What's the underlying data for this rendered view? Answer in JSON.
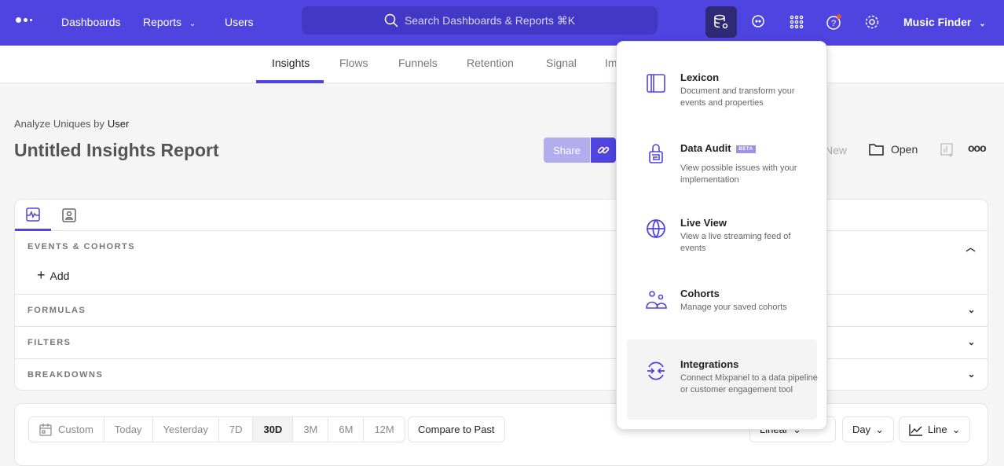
{
  "nav": {
    "links": [
      "Dashboards",
      "Reports",
      "Users"
    ],
    "search_placeholder": "Search Dashboards & Reports ⌘K",
    "project": "Music Finder",
    "accent": "#4f44e0",
    "notification_color": "#e5533d"
  },
  "subnav": {
    "tabs": [
      "Insights",
      "Flows",
      "Funnels",
      "Retention",
      "Signal",
      "Impact"
    ],
    "active": "Insights"
  },
  "report": {
    "analyze_label": "Analyze Uniques by",
    "analyze_value": "User",
    "title": "Untitled Insights Report",
    "share": "Share",
    "new": "New",
    "open": "Open"
  },
  "query": {
    "sections": [
      {
        "label": "EVENTS & COHORTS",
        "expanded": true
      },
      {
        "label": "FORMULAS"
      },
      {
        "label": "FILTERS"
      },
      {
        "label": "BREAKDOWNS"
      }
    ],
    "add": "Add"
  },
  "controls": {
    "ranges": [
      "Custom",
      "Today",
      "Yesterday",
      "7D",
      "30D",
      "3M",
      "6M",
      "12M"
    ],
    "selected": "30D",
    "compare": "Compare to Past",
    "scale": "Linear",
    "interval": "Day",
    "chart_type": "Line"
  },
  "menu": {
    "items": [
      {
        "icon": "book-icon",
        "title": "Lexicon",
        "desc": "Document and transform your events and properties"
      },
      {
        "icon": "lock-icon",
        "title": "Data Audit",
        "badge": "BETA",
        "desc": "View possible issues with your implementation"
      },
      {
        "icon": "globe-icon",
        "title": "Live View",
        "desc": "View a live streaming feed of events"
      },
      {
        "icon": "users-icon",
        "title": "Cohorts",
        "desc": "Manage your saved cohorts"
      },
      {
        "icon": "integrations-icon",
        "title": "Integrations",
        "desc": "Connect Mixpanel to a data pipeline or customer engagement tool"
      }
    ]
  }
}
